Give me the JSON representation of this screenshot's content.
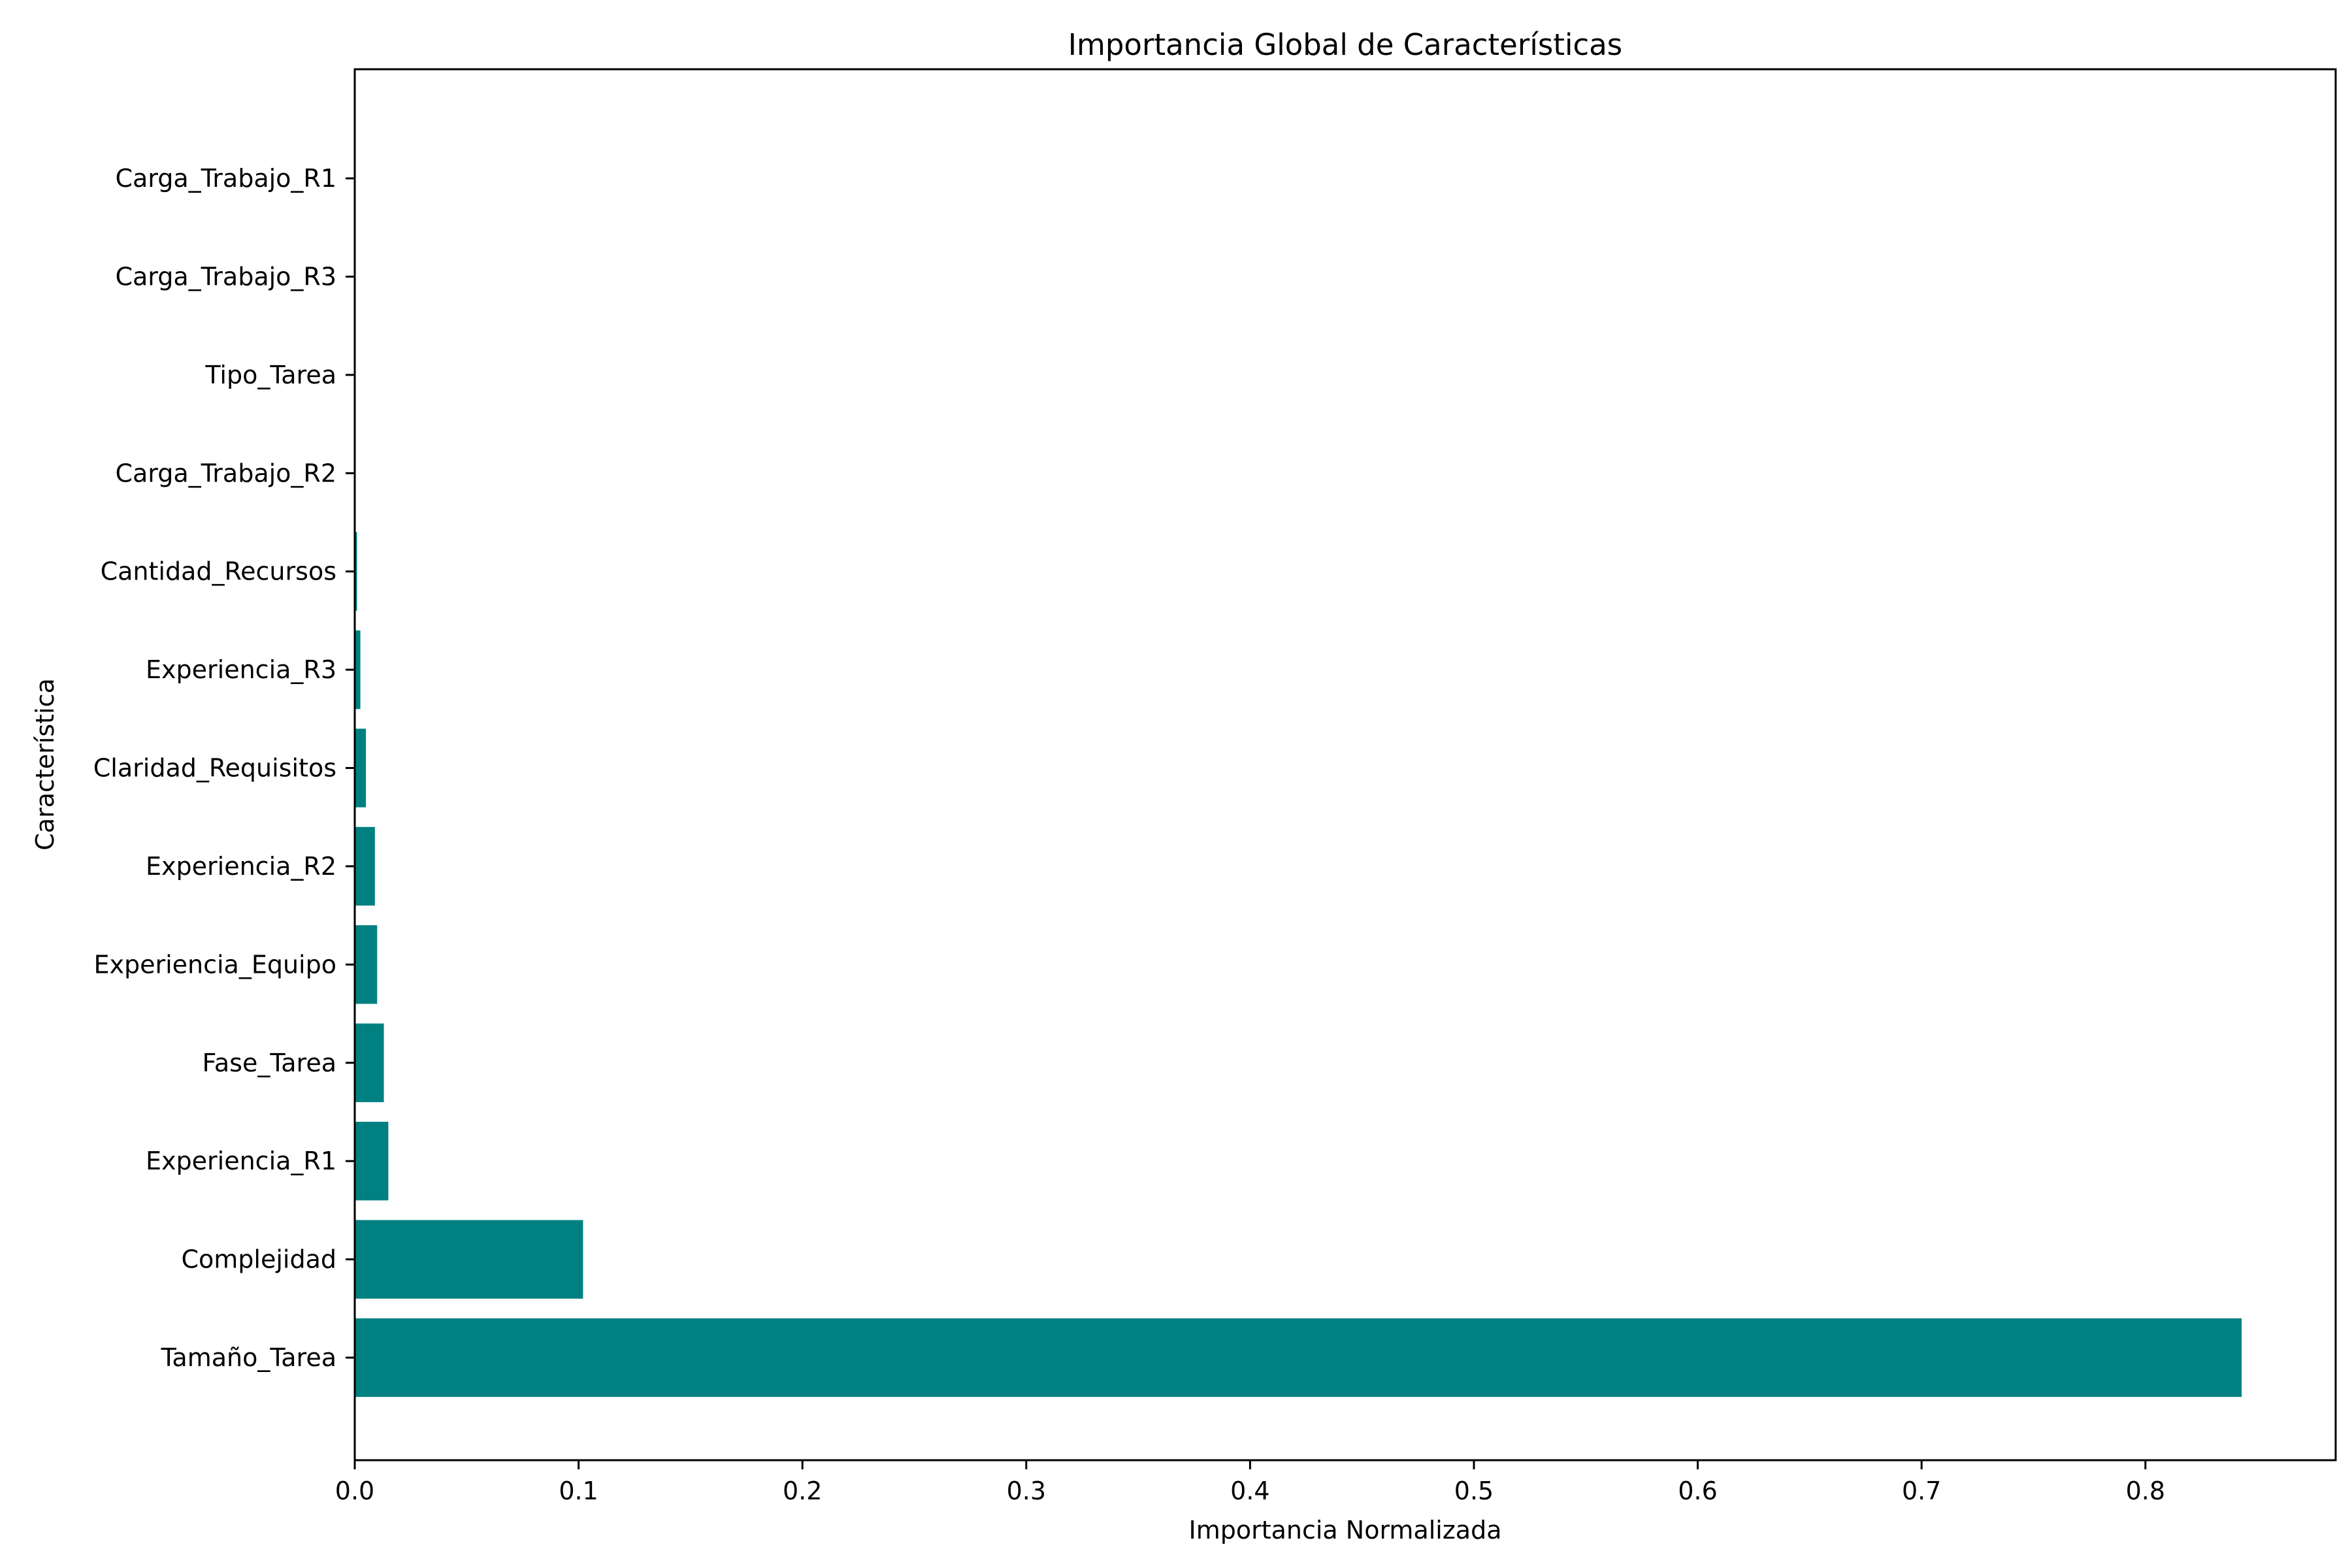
{
  "chart_data": {
    "type": "bar",
    "orientation": "horizontal",
    "title": "Importancia Global de Características",
    "xlabel": "Importancia Normalizada",
    "ylabel": "Característica",
    "categories": [
      "Tamaño_Tarea",
      "Complejidad",
      "Experiencia_R1",
      "Fase_Tarea",
      "Experiencia_Equipo",
      "Experiencia_R2",
      "Claridad_Requisitos",
      "Experiencia_R3",
      "Cantidad_Recursos",
      "Carga_Trabajo_R2",
      "Tipo_Tarea",
      "Carga_Trabajo_R3",
      "Carga_Trabajo_R1"
    ],
    "values": [
      0.843,
      0.102,
      0.015,
      0.013,
      0.01,
      0.009,
      0.005,
      0.0025,
      0.001,
      0.0,
      0.0,
      0.0,
      0.0
    ],
    "xlim": [
      0,
      0.885
    ],
    "xticks": [
      0.0,
      0.1,
      0.2,
      0.3,
      0.4,
      0.5,
      0.6,
      0.7,
      0.8
    ],
    "xtick_labels": [
      "0.0",
      "0.1",
      "0.2",
      "0.3",
      "0.4",
      "0.5",
      "0.6",
      "0.7",
      "0.8"
    ],
    "bar_color": "#008080",
    "grid": false,
    "legend": "none"
  }
}
